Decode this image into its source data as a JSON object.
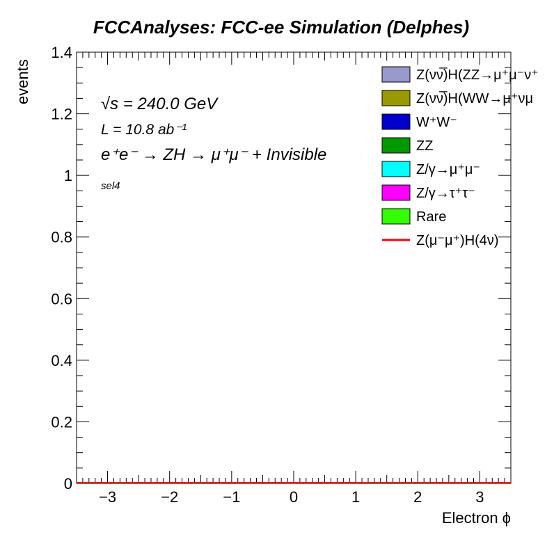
{
  "chart_data": {
    "type": "bar",
    "title": "FCCAnalyses: FCC-ee Simulation (Delphes)",
    "xlabel": "Electron ϕ",
    "ylabel": "events",
    "xlim": [
      -3.5,
      3.5
    ],
    "ylim": [
      0,
      1.4
    ],
    "x_ticks": [
      "−3",
      "−2",
      "−1",
      "0",
      "1",
      "2",
      "3"
    ],
    "y_ticks": [
      "0",
      "0.2",
      "0.4",
      "0.6",
      "0.8",
      "1",
      "1.2",
      "1.4"
    ],
    "annotations": {
      "energy": "√s = 240.0 GeV",
      "lumi": "L = 10.8 ab⁻¹",
      "process": "e⁺e⁻ → ZH → μ⁺μ⁻ + Invisible",
      "selection": "sel4"
    },
    "legend_placement": "top-right",
    "series": [
      {
        "name": "Z(νν̅)H(ZZ→μ⁺μ⁻ν⁺",
        "type": "stack",
        "color": "#9999cc",
        "values": [
          0
        ]
      },
      {
        "name": "Z(νν̅)H(WW→μ⁺νμ",
        "type": "stack",
        "color": "#999900",
        "values": [
          0
        ]
      },
      {
        "name": "W⁺W⁻",
        "type": "stack",
        "color": "#0000cc",
        "values": [
          0
        ]
      },
      {
        "name": "ZZ",
        "type": "stack",
        "color": "#009900",
        "values": [
          0
        ]
      },
      {
        "name": "Z/γ→μ⁺μ⁻",
        "type": "stack",
        "color": "#00ffff",
        "values": [
          0
        ]
      },
      {
        "name": "Z/γ→τ⁺τ⁻",
        "type": "stack",
        "color": "#ff00ff",
        "values": [
          0
        ]
      },
      {
        "name": "Rare",
        "type": "stack",
        "color": "#33ff00",
        "values": [
          0
        ]
      },
      {
        "name": "Z(μ⁻μ⁺)H(4ν)",
        "type": "line",
        "color": "#ff0000",
        "values": [
          0
        ]
      }
    ]
  }
}
